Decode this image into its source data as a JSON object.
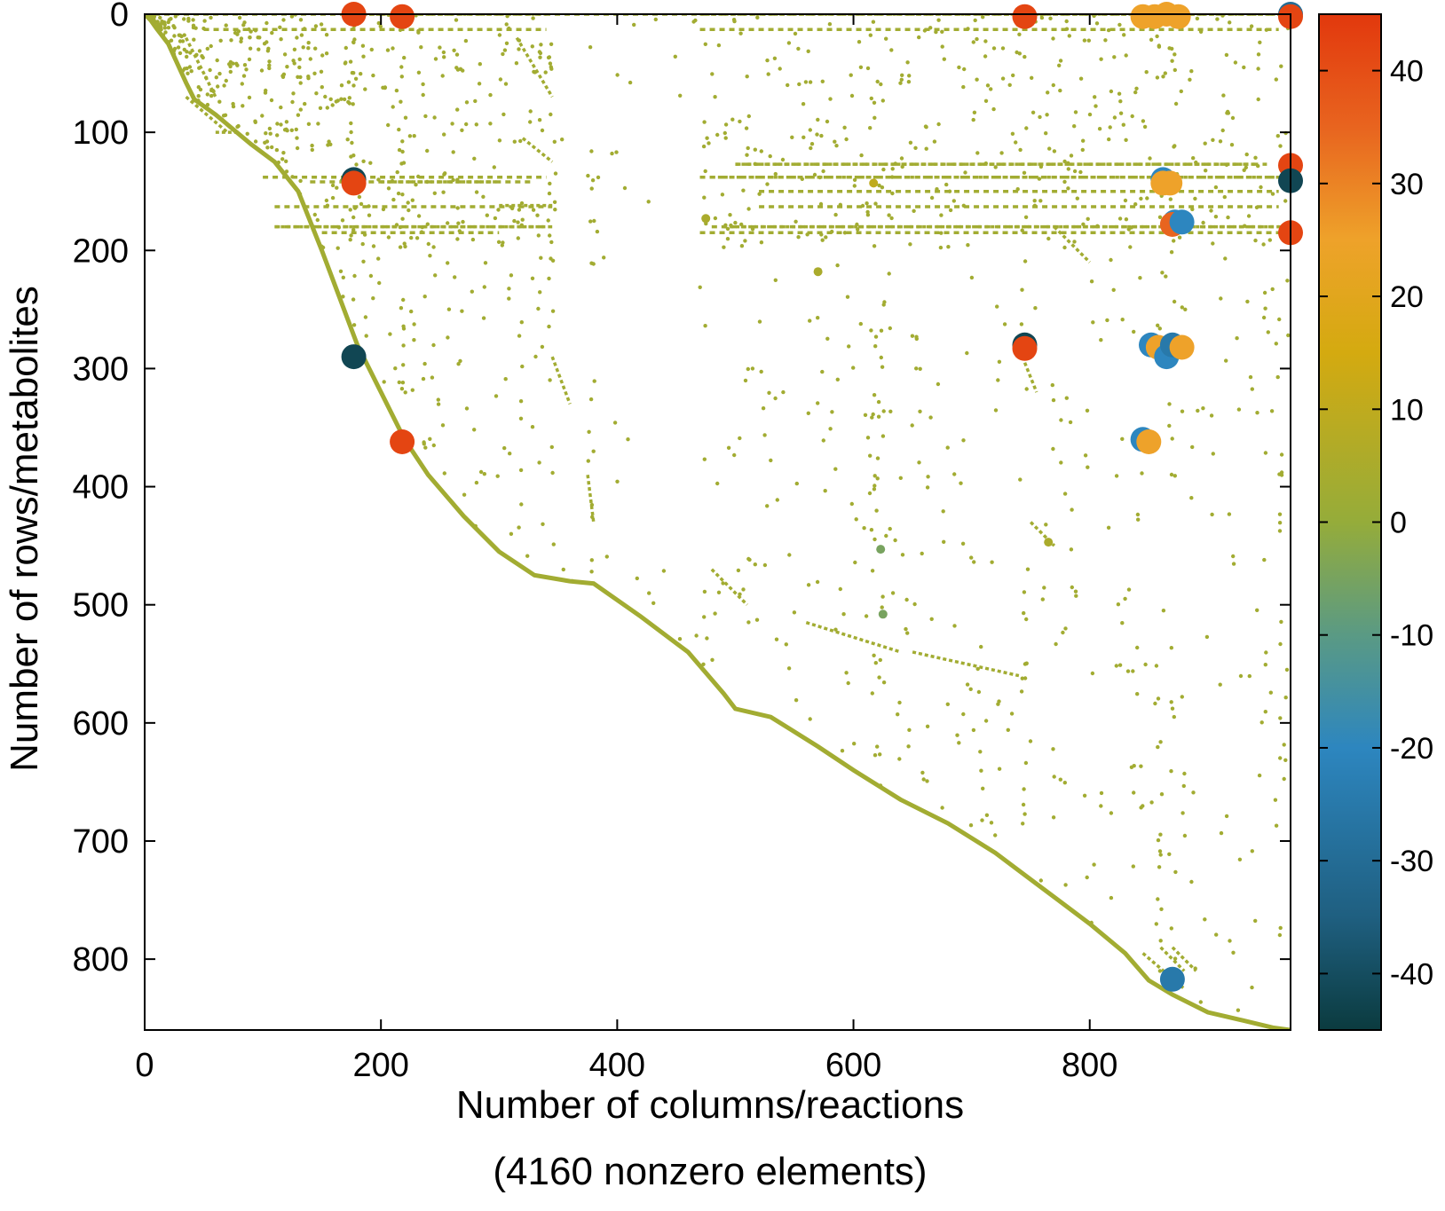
{
  "chart_data": {
    "type": "scatter",
    "xlabel": "Number of columns/reactions",
    "xlabel_sub": "(4160 nonzero elements)",
    "ylabel": "Number of rows/metabolites",
    "xlim": [
      0,
      970
    ],
    "ylim": [
      860,
      0
    ],
    "y_axis_reversed": true,
    "x_ticks": [
      0,
      200,
      400,
      600,
      800
    ],
    "y_ticks": [
      0,
      100,
      200,
      300,
      400,
      500,
      600,
      700,
      800
    ],
    "grid": false,
    "colorbar": {
      "range": [
        -45,
        45
      ],
      "ticks": [
        -40,
        -30,
        -20,
        -10,
        0,
        10,
        20,
        30,
        40
      ],
      "colormap_stops": [
        {
          "v": -45,
          "color": "#0b3b3f"
        },
        {
          "v": -35,
          "color": "#1f5f80"
        },
        {
          "v": -20,
          "color": "#2d86bf"
        },
        {
          "v": -10,
          "color": "#5a9a84"
        },
        {
          "v": 0,
          "color": "#95ac3a"
        },
        {
          "v": 15,
          "color": "#d4aa10"
        },
        {
          "v": 25,
          "color": "#eea22a"
        },
        {
          "v": 35,
          "color": "#e8641f"
        },
        {
          "v": 45,
          "color": "#e2380d"
        }
      ]
    },
    "diagonal_trace": [
      [
        0,
        0
      ],
      [
        5,
        5
      ],
      [
        10,
        12
      ],
      [
        20,
        25
      ],
      [
        35,
        58
      ],
      [
        42,
        72
      ],
      [
        60,
        85
      ],
      [
        90,
        110
      ],
      [
        110,
        125
      ],
      [
        130,
        150
      ],
      [
        150,
        200
      ],
      [
        165,
        240
      ],
      [
        180,
        280
      ],
      [
        200,
        320
      ],
      [
        220,
        360
      ],
      [
        240,
        390
      ],
      [
        270,
        425
      ],
      [
        300,
        455
      ],
      [
        330,
        475
      ],
      [
        360,
        480
      ],
      [
        380,
        482
      ],
      [
        420,
        510
      ],
      [
        460,
        540
      ],
      [
        490,
        575
      ],
      [
        500,
        588
      ],
      [
        530,
        595
      ],
      [
        570,
        620
      ],
      [
        600,
        640
      ],
      [
        640,
        665
      ],
      [
        680,
        685
      ],
      [
        720,
        710
      ],
      [
        760,
        740
      ],
      [
        800,
        770
      ],
      [
        830,
        795
      ],
      [
        850,
        818
      ],
      [
        870,
        830
      ],
      [
        900,
        845
      ],
      [
        930,
        852
      ],
      [
        955,
        858
      ],
      [
        970,
        860
      ]
    ],
    "secondary_lines": [
      [
        [
          35,
          20
        ],
        [
          60,
          70
        ]
      ],
      [
        [
          35,
          70
        ],
        [
          70,
          100
        ]
      ],
      [
        [
          60,
          100
        ],
        [
          80,
          100
        ]
      ],
      [
        [
          315,
          20
        ],
        [
          345,
          70
        ]
      ],
      [
        [
          320,
          105
        ],
        [
          345,
          125
        ]
      ],
      [
        [
          345,
          290
        ],
        [
          360,
          330
        ]
      ],
      [
        [
          375,
          390
        ],
        [
          380,
          430
        ]
      ],
      [
        [
          480,
          470
        ],
        [
          510,
          500
        ]
      ],
      [
        [
          560,
          515
        ],
        [
          640,
          540
        ]
      ],
      [
        [
          650,
          540
        ],
        [
          740,
          560
        ]
      ],
      [
        [
          770,
          180
        ],
        [
          800,
          210
        ]
      ],
      [
        [
          745,
          295
        ],
        [
          755,
          320
        ]
      ],
      [
        [
          750,
          430
        ],
        [
          770,
          450
        ]
      ],
      [
        [
          845,
          795
        ],
        [
          880,
          825
        ]
      ],
      [
        [
          860,
          790
        ],
        [
          880,
          810
        ]
      ],
      [
        [
          870,
          790
        ],
        [
          890,
          810
        ]
      ],
      [
        [
          300,
          162
        ],
        [
          345,
          162
        ]
      ],
      [
        [
          200,
          142
        ],
        [
          300,
          142
        ]
      ],
      [
        [
          110,
          180
        ],
        [
          340,
          180
        ]
      ],
      [
        [
          480,
          138
        ],
        [
          960,
          138
        ]
      ],
      [
        [
          490,
          180
        ],
        [
          960,
          180
        ]
      ],
      [
        [
          500,
          127
        ],
        [
          940,
          127
        ]
      ],
      [
        [
          180,
          0
        ],
        [
          340,
          0
        ]
      ],
      [
        [
          470,
          0
        ],
        [
          960,
          0
        ]
      ]
    ],
    "horizontal_bands": [
      {
        "row": 0,
        "from": 0,
        "to": 970
      },
      {
        "row": 13,
        "from": 50,
        "to": 340
      },
      {
        "row": 13,
        "from": 470,
        "to": 960
      },
      {
        "row": 127,
        "from": 500,
        "to": 950
      },
      {
        "row": 138,
        "from": 100,
        "to": 340
      },
      {
        "row": 138,
        "from": 470,
        "to": 965
      },
      {
        "row": 142,
        "from": 140,
        "to": 330
      },
      {
        "row": 150,
        "from": 520,
        "to": 960
      },
      {
        "row": 163,
        "from": 110,
        "to": 345
      },
      {
        "row": 163,
        "from": 520,
        "to": 960
      },
      {
        "row": 180,
        "from": 110,
        "to": 345
      },
      {
        "row": 180,
        "from": 480,
        "to": 965
      },
      {
        "row": 185,
        "from": 150,
        "to": 300
      },
      {
        "row": 185,
        "from": 470,
        "to": 960
      }
    ],
    "scatter_points_count": 4160,
    "highlighted_points": [
      {
        "x": 177,
        "y": 0,
        "v": 42
      },
      {
        "x": 218,
        "y": 2,
        "v": 42
      },
      {
        "x": 745,
        "y": 2,
        "v": 42
      },
      {
        "x": 970,
        "y": 0,
        "v": -30
      },
      {
        "x": 970,
        "y": 2,
        "v": 42
      },
      {
        "x": 845,
        "y": 2,
        "v": 25
      },
      {
        "x": 855,
        "y": 2,
        "v": 25
      },
      {
        "x": 865,
        "y": 0,
        "v": 25
      },
      {
        "x": 875,
        "y": 2,
        "v": 25
      },
      {
        "x": 177,
        "y": 140,
        "v": -42
      },
      {
        "x": 177,
        "y": 143,
        "v": 42
      },
      {
        "x": 970,
        "y": 128,
        "v": 42
      },
      {
        "x": 970,
        "y": 141,
        "v": -42
      },
      {
        "x": 970,
        "y": 185,
        "v": 42
      },
      {
        "x": 862,
        "y": 140,
        "v": -20
      },
      {
        "x": 862,
        "y": 143,
        "v": 25
      },
      {
        "x": 868,
        "y": 143,
        "v": 25
      },
      {
        "x": 872,
        "y": 176,
        "v": -20
      },
      {
        "x": 870,
        "y": 178,
        "v": 35
      },
      {
        "x": 878,
        "y": 176,
        "v": -20
      },
      {
        "x": 177,
        "y": 290,
        "v": -42
      },
      {
        "x": 745,
        "y": 280,
        "v": -42
      },
      {
        "x": 745,
        "y": 283,
        "v": 42
      },
      {
        "x": 852,
        "y": 280,
        "v": -20
      },
      {
        "x": 858,
        "y": 282,
        "v": 25
      },
      {
        "x": 865,
        "y": 290,
        "v": -20
      },
      {
        "x": 870,
        "y": 280,
        "v": -25
      },
      {
        "x": 878,
        "y": 282,
        "v": 25
      },
      {
        "x": 218,
        "y": 362,
        "v": 42
      },
      {
        "x": 845,
        "y": 360,
        "v": -20
      },
      {
        "x": 850,
        "y": 362,
        "v": 25
      },
      {
        "x": 870,
        "y": 817,
        "v": -25
      },
      {
        "x": 617,
        "y": 143,
        "v": 10
      },
      {
        "x": 623,
        "y": 453,
        "v": -5
      },
      {
        "x": 625,
        "y": 508,
        "v": -5
      },
      {
        "x": 570,
        "y": 218,
        "v": 5
      },
      {
        "x": 475,
        "y": 173,
        "v": 5
      },
      {
        "x": 765,
        "y": 447,
        "v": 5
      }
    ],
    "base_point_value": 3
  }
}
